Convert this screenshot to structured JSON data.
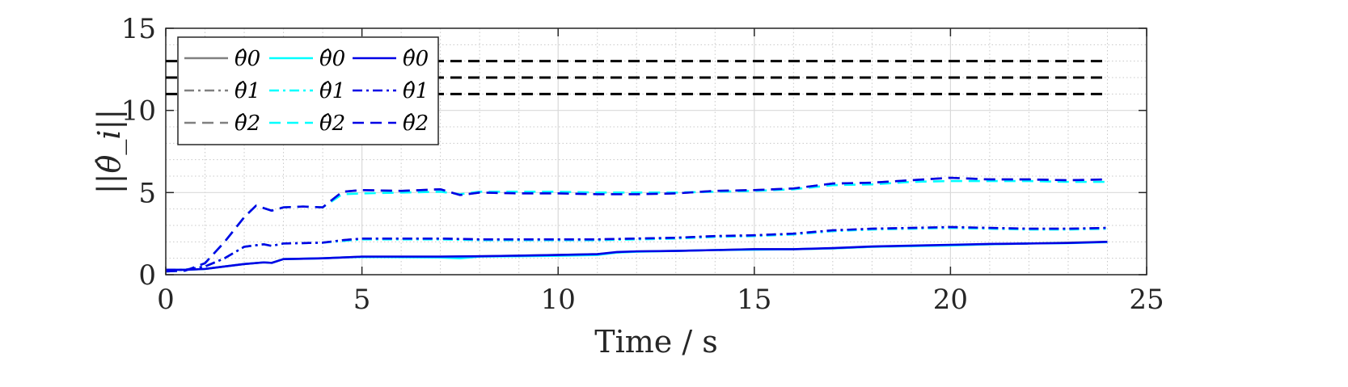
{
  "chart_data": {
    "type": "line",
    "title": "",
    "xlabel": "Time / s",
    "ylabel": "||θ̂_i||",
    "xlim": [
      0,
      25
    ],
    "ylim": [
      0,
      15
    ],
    "xticks": [
      "0",
      "5",
      "10",
      "15",
      "20",
      "25"
    ],
    "yticks": [
      "0",
      "5",
      "10",
      "15"
    ],
    "grid": true,
    "legend_position": "top-left",
    "legend_columns": 3,
    "colors": {
      "gray": "#808080",
      "cyan": "#00ffff",
      "blue": "#0000e6",
      "bound": "#000000",
      "grid": "#d9d9d9"
    },
    "series": [
      {
        "name": "θ̂0",
        "group": "gray",
        "style": "solid",
        "x": [
          0,
          0.5,
          1,
          1.5,
          2,
          2.5,
          2.7,
          3,
          4,
          4.5,
          5,
          7,
          8,
          10,
          11,
          11.5,
          12,
          13,
          14,
          15,
          16,
          17,
          18,
          20,
          21,
          22,
          23,
          24
        ],
        "y": [
          0.3,
          0.3,
          0.35,
          0.5,
          0.65,
          0.75,
          0.72,
          0.95,
          1.0,
          1.05,
          1.1,
          1.1,
          1.12,
          1.2,
          1.25,
          1.35,
          1.42,
          1.45,
          1.5,
          1.55,
          1.55,
          1.6,
          1.7,
          1.8,
          1.85,
          1.9,
          1.95,
          2.0
        ]
      },
      {
        "name": "θ̂1",
        "group": "gray",
        "style": "dashdot",
        "x": [
          0,
          0.5,
          1,
          1.5,
          2,
          2.5,
          2.7,
          3,
          4,
          4.5,
          5,
          7,
          8,
          10,
          11,
          12,
          13,
          14,
          15,
          16,
          17,
          18,
          20,
          21,
          22,
          23,
          24
        ],
        "y": [
          0.3,
          0.3,
          0.5,
          1.0,
          1.7,
          1.85,
          1.75,
          1.9,
          1.95,
          2.1,
          2.2,
          2.2,
          2.15,
          2.15,
          2.15,
          2.2,
          2.25,
          2.35,
          2.4,
          2.5,
          2.7,
          2.8,
          2.9,
          2.85,
          2.8,
          2.8,
          2.85
        ]
      },
      {
        "name": "θ̂2",
        "group": "gray",
        "style": "dashed",
        "x": [
          0,
          0.5,
          1,
          1.5,
          2,
          2.3,
          2.7,
          3,
          3.5,
          4,
          4.5,
          5,
          6,
          7,
          7.5,
          8,
          9,
          10,
          11,
          12,
          13,
          14,
          15,
          16,
          17,
          18,
          19,
          20,
          21,
          22,
          23,
          24
        ],
        "y": [
          0.2,
          0.25,
          0.7,
          2.0,
          3.5,
          4.2,
          3.9,
          4.1,
          4.15,
          4.1,
          5.05,
          5.15,
          5.1,
          5.2,
          4.85,
          5.0,
          4.95,
          4.95,
          4.9,
          4.9,
          4.95,
          5.1,
          5.15,
          5.25,
          5.55,
          5.6,
          5.75,
          5.9,
          5.8,
          5.8,
          5.75,
          5.8
        ]
      },
      {
        "name": "θ̂0",
        "group": "cyan",
        "style": "solid",
        "x": [
          0,
          0.5,
          1,
          1.5,
          2,
          2.5,
          2.7,
          3,
          4,
          4.5,
          5,
          7,
          7.5,
          8,
          10,
          11,
          11.5,
          12,
          13,
          14,
          15,
          16,
          17,
          18,
          20,
          21,
          22,
          23,
          24
        ],
        "y": [
          0.3,
          0.3,
          0.35,
          0.5,
          0.65,
          0.75,
          0.72,
          0.95,
          1.0,
          1.05,
          1.08,
          1.05,
          1.0,
          1.1,
          1.15,
          1.2,
          1.35,
          1.4,
          1.45,
          1.5,
          1.52,
          1.55,
          1.6,
          1.7,
          1.78,
          1.85,
          1.9,
          1.92,
          1.98
        ]
      },
      {
        "name": "θ̂1",
        "group": "cyan",
        "style": "dashdot",
        "x": [
          0,
          0.5,
          1,
          1.5,
          2,
          2.5,
          2.7,
          3,
          4,
          4.5,
          5,
          7,
          8,
          10,
          11,
          12,
          13,
          14,
          15,
          16,
          17,
          18,
          20,
          21,
          22,
          23,
          24
        ],
        "y": [
          0.3,
          0.3,
          0.5,
          1.0,
          1.7,
          1.85,
          1.75,
          1.9,
          1.95,
          2.05,
          2.15,
          2.15,
          2.1,
          2.1,
          2.1,
          2.15,
          2.2,
          2.3,
          2.35,
          2.45,
          2.65,
          2.75,
          2.85,
          2.8,
          2.75,
          2.75,
          2.8
        ]
      },
      {
        "name": "θ̂2",
        "group": "cyan",
        "style": "dashed",
        "x": [
          0,
          0.5,
          1,
          1.5,
          2,
          2.3,
          2.7,
          3,
          3.5,
          4,
          4.5,
          5,
          6,
          7,
          7.5,
          8,
          9,
          10,
          11,
          12,
          13,
          14,
          15,
          16,
          17,
          18,
          19,
          20,
          21,
          22,
          23,
          24
        ],
        "y": [
          0.2,
          0.25,
          0.7,
          2.0,
          3.5,
          4.2,
          3.9,
          4.1,
          4.15,
          4.1,
          4.9,
          4.95,
          5.0,
          5.05,
          4.9,
          5.05,
          5.05,
          5.05,
          5.0,
          5.0,
          5.0,
          5.05,
          5.1,
          5.2,
          5.45,
          5.5,
          5.65,
          5.7,
          5.7,
          5.7,
          5.65,
          5.65
        ]
      },
      {
        "name": "θ̂0",
        "group": "blue",
        "style": "solid",
        "x": [
          0,
          0.5,
          1,
          1.5,
          2,
          2.5,
          2.7,
          3,
          4,
          4.5,
          5,
          7,
          8,
          10,
          11,
          11.5,
          12,
          13,
          14,
          15,
          16,
          17,
          18,
          20,
          21,
          22,
          23,
          24
        ],
        "y": [
          0.3,
          0.3,
          0.35,
          0.5,
          0.65,
          0.75,
          0.72,
          0.95,
          1.0,
          1.05,
          1.1,
          1.1,
          1.12,
          1.2,
          1.25,
          1.38,
          1.42,
          1.45,
          1.5,
          1.55,
          1.55,
          1.62,
          1.72,
          1.82,
          1.87,
          1.9,
          1.93,
          2.0
        ]
      },
      {
        "name": "θ̂1",
        "group": "blue",
        "style": "dashdot",
        "x": [
          0,
          0.5,
          1,
          1.5,
          2,
          2.5,
          2.7,
          3,
          4,
          4.5,
          5,
          7,
          8,
          10,
          11,
          12,
          13,
          14,
          15,
          16,
          17,
          18,
          20,
          21,
          22,
          23,
          24
        ],
        "y": [
          0.3,
          0.3,
          0.5,
          1.0,
          1.7,
          1.85,
          1.75,
          1.9,
          1.95,
          2.1,
          2.2,
          2.2,
          2.15,
          2.15,
          2.15,
          2.2,
          2.25,
          2.35,
          2.4,
          2.5,
          2.7,
          2.8,
          2.9,
          2.85,
          2.8,
          2.8,
          2.85
        ]
      },
      {
        "name": "θ̂2",
        "group": "blue",
        "style": "dashed",
        "x": [
          0,
          0.5,
          1,
          1.5,
          2,
          2.3,
          2.7,
          3,
          3.5,
          4,
          4.5,
          5,
          6,
          7,
          7.5,
          8,
          9,
          10,
          11,
          12,
          13,
          14,
          15,
          16,
          17,
          18,
          19,
          20,
          21,
          22,
          23,
          24
        ],
        "y": [
          0.2,
          0.25,
          0.7,
          2.0,
          3.5,
          4.2,
          3.9,
          4.1,
          4.15,
          4.1,
          5.05,
          5.15,
          5.1,
          5.2,
          4.85,
          5.0,
          4.95,
          4.95,
          4.9,
          4.9,
          4.95,
          5.1,
          5.15,
          5.25,
          5.55,
          5.6,
          5.75,
          5.9,
          5.8,
          5.8,
          5.75,
          5.8
        ]
      },
      {
        "name": "",
        "group": "bound",
        "style": "dashed",
        "x": [
          0,
          24
        ],
        "y": [
          13,
          13
        ]
      },
      {
        "name": "",
        "group": "bound",
        "style": "dashed",
        "x": [
          0,
          24
        ],
        "y": [
          12,
          12
        ]
      },
      {
        "name": "",
        "group": "bound",
        "style": "dashed",
        "x": [
          0,
          24
        ],
        "y": [
          11,
          11
        ]
      }
    ]
  }
}
